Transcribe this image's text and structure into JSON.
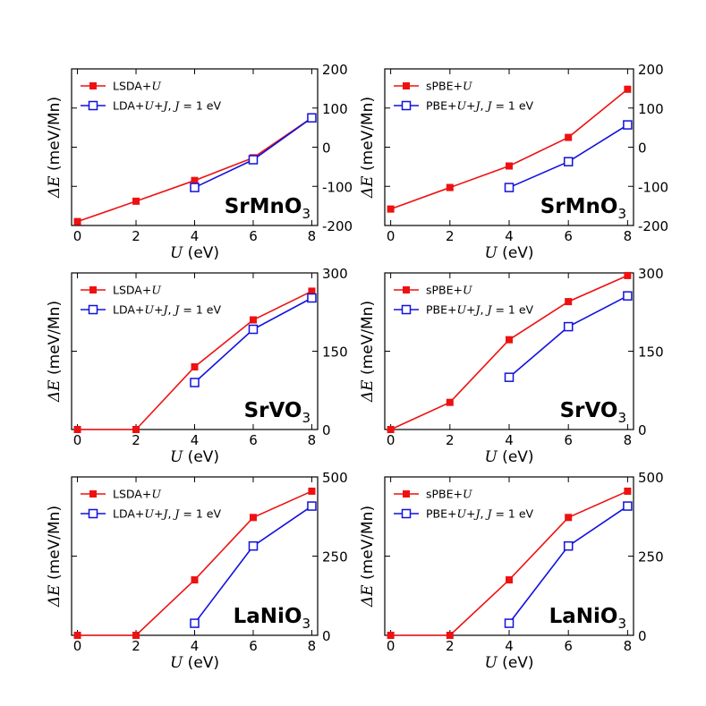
{
  "colors": {
    "series1": "#ee1111",
    "series2": "#1111dd"
  },
  "chart_data": [
    {
      "type": "line",
      "material": "SrMnO",
      "material_sub": "3",
      "xlabel_var": "U",
      "xlabel_unit": "(eV)",
      "ylabel_var": "ΔE",
      "ylabel_unit": "(meV/Mn)",
      "xlim": [
        -0.2,
        8.2
      ],
      "ylim": [
        -200,
        200
      ],
      "xticks": [
        "0",
        "2",
        "4",
        "6",
        "8"
      ],
      "yticks": [
        "200",
        "100",
        "0",
        "-100",
        "-200"
      ],
      "series": [
        {
          "name": "LSDA+U",
          "marker": "filled-square",
          "x": [
            0,
            2,
            4,
            6,
            8
          ],
          "y": [
            -190,
            -138,
            -85,
            -27,
            75
          ]
        },
        {
          "name": "LDA+U+J, J = 1 eV",
          "marker": "open-square",
          "x": [
            4,
            6,
            8
          ],
          "y": [
            -103,
            -32,
            75
          ]
        }
      ]
    },
    {
      "type": "line",
      "material": "SrMnO",
      "material_sub": "3",
      "xlabel_var": "U",
      "xlabel_unit": "(eV)",
      "ylabel_var": "ΔE",
      "ylabel_unit": "(meV/Mn)",
      "xlim": [
        -0.2,
        8.2
      ],
      "ylim": [
        -200,
        200
      ],
      "xticks": [
        "0",
        "2",
        "4",
        "6",
        "8"
      ],
      "yticks": [
        "200",
        "100",
        "0",
        "-100",
        "-200"
      ],
      "series": [
        {
          "name": "sPBE+U",
          "marker": "filled-square",
          "x": [
            0,
            2,
            4,
            6,
            8
          ],
          "y": [
            -158,
            -103,
            -48,
            25,
            148
          ]
        },
        {
          "name": "PBE+U+J, J = 1 eV",
          "marker": "open-square",
          "x": [
            4,
            6,
            8
          ],
          "y": [
            -103,
            -37,
            57
          ]
        }
      ]
    },
    {
      "type": "line",
      "material": "SrVO",
      "material_sub": "3",
      "xlabel_var": "U",
      "xlabel_unit": "(eV)",
      "ylabel_var": "ΔE",
      "ylabel_unit": "(meV/Mn)",
      "xlim": [
        -0.2,
        8.2
      ],
      "ylim": [
        0,
        300
      ],
      "xticks": [
        "0",
        "2",
        "4",
        "6",
        "8"
      ],
      "yticks": [
        "300",
        "150",
        "0"
      ],
      "series": [
        {
          "name": "LSDA+U",
          "marker": "filled-square",
          "x": [
            0,
            2,
            4,
            6,
            8
          ],
          "y": [
            0,
            0,
            120,
            210,
            265
          ]
        },
        {
          "name": "LDA+U+J, J = 1 eV",
          "marker": "open-square",
          "x": [
            4,
            6,
            8
          ],
          "y": [
            90,
            192,
            252
          ]
        }
      ]
    },
    {
      "type": "line",
      "material": "SrVO",
      "material_sub": "3",
      "xlabel_var": "U",
      "xlabel_unit": "(eV)",
      "ylabel_var": "ΔE",
      "ylabel_unit": "(meV/Mn)",
      "xlim": [
        -0.2,
        8.2
      ],
      "ylim": [
        0,
        300
      ],
      "xticks": [
        "0",
        "2",
        "4",
        "6",
        "8"
      ],
      "yticks": [
        "300",
        "150",
        "0"
      ],
      "series": [
        {
          "name": "sPBE+U",
          "marker": "filled-square",
          "x": [
            0,
            2,
            4,
            6,
            8
          ],
          "y": [
            0,
            52,
            172,
            245,
            295
          ]
        },
        {
          "name": "PBE+U+J, J = 1 eV",
          "marker": "open-square",
          "x": [
            4,
            6,
            8
          ],
          "y": [
            100,
            197,
            256
          ]
        }
      ]
    },
    {
      "type": "line",
      "material": "LaNiO",
      "material_sub": "3",
      "xlabel_var": "U",
      "xlabel_unit": "(eV)",
      "ylabel_var": "ΔE",
      "ylabel_unit": "(meV/Mn)",
      "xlim": [
        -0.2,
        8.2
      ],
      "ylim": [
        0,
        500
      ],
      "xticks": [
        "0",
        "2",
        "4",
        "6",
        "8"
      ],
      "yticks": [
        "500",
        "250",
        "0"
      ],
      "series": [
        {
          "name": "LSDA+U",
          "marker": "filled-square",
          "x": [
            0,
            2,
            4,
            6,
            8
          ],
          "y": [
            0,
            0,
            175,
            372,
            455
          ]
        },
        {
          "name": "LDA+U+J, J = 1 eV",
          "marker": "open-square",
          "x": [
            4,
            6,
            8
          ],
          "y": [
            38,
            282,
            408
          ]
        }
      ]
    },
    {
      "type": "line",
      "material": "LaNiO",
      "material_sub": "3",
      "xlabel_var": "U",
      "xlabel_unit": "(eV)",
      "ylabel_var": "ΔE",
      "ylabel_unit": "(meV/Mn)",
      "xlim": [
        -0.2,
        8.2
      ],
      "ylim": [
        0,
        500
      ],
      "xticks": [
        "0",
        "2",
        "4",
        "6",
        "8"
      ],
      "yticks": [
        "500",
        "250",
        "0"
      ],
      "series": [
        {
          "name": "sPBE+U",
          "marker": "filled-square",
          "x": [
            0,
            2,
            4,
            6,
            8
          ],
          "y": [
            0,
            0,
            175,
            372,
            455
          ]
        },
        {
          "name": "PBE+U+J, J = 1 eV",
          "marker": "open-square",
          "x": [
            4,
            6,
            8
          ],
          "y": [
            38,
            282,
            408
          ]
        }
      ]
    }
  ]
}
